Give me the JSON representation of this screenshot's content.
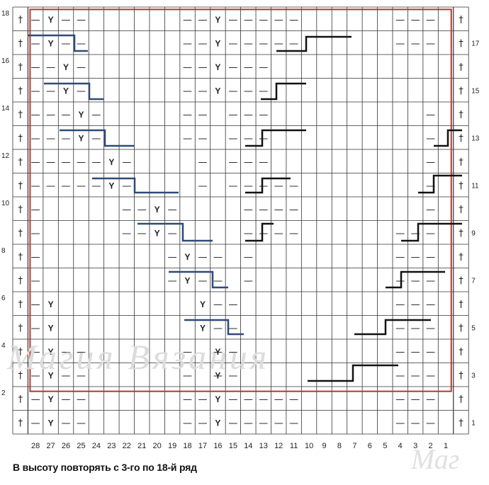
{
  "chart": {
    "columns": [
      "28",
      "27",
      "26",
      "25",
      "24",
      "23",
      "22",
      "21",
      "20",
      "19",
      "18",
      "17",
      "16",
      "15",
      "14",
      "13",
      "12",
      "11",
      "10",
      "9",
      "8",
      "7",
      "6",
      "5",
      "4",
      "3",
      "2",
      "1"
    ],
    "even_row_labels": [
      "18",
      "16",
      "14",
      "12",
      "10",
      "8",
      "6",
      "4",
      "2"
    ],
    "odd_row_labels": [
      "17",
      "15",
      "13",
      "11",
      "9",
      "7",
      "5",
      "3",
      "1"
    ],
    "symbols": {
      "cross": "†",
      "dash": "—",
      "yarn": "Y"
    },
    "grid": [
      "†—Y——.........——Y—————.........——†",
      "†—Y——.........——Y—————.........——†"
    ]
  },
  "caption": "В высоту повторять с 3-го по 18-й ряд",
  "watermark": "Магия Вязания",
  "watermark_corner": "Маг",
  "colors": {
    "border": "#b03a2e",
    "blue_line": "#2e4a78",
    "black_line": "#111111",
    "grid": "#333333"
  }
}
